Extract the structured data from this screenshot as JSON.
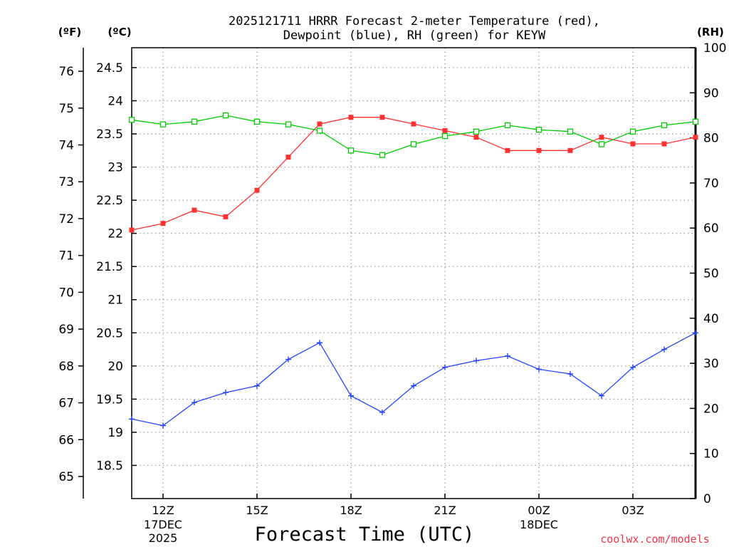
{
  "title_line1": "2025121711 HRRR Forecast 2-meter Temperature (red),",
  "title_line2": "Dewpoint (blue), RH (green) for KEYW",
  "axis_header_f": "(ºF)",
  "axis_header_c": "(ºC)",
  "axis_header_rh": "(RH)",
  "xlabel": "Forecast Time (UTC)",
  "credit": "coolwx.com/models",
  "colors": {
    "temp": "#ff3030",
    "dew": "#2244ff",
    "rh": "#00cc00",
    "grid": "#999999"
  },
  "chart_data": {
    "type": "line",
    "x": [
      0,
      1,
      2,
      3,
      4,
      5,
      6,
      7,
      8,
      9,
      10,
      11,
      12,
      13,
      14,
      15,
      16,
      17,
      18
    ],
    "x_ticks": [
      {
        "x": 1,
        "label": "12Z",
        "sub1": "17DEC",
        "sub2": "2025"
      },
      {
        "x": 4,
        "label": "15Z"
      },
      {
        "x": 7,
        "label": "18Z"
      },
      {
        "x": 10,
        "label": "21Z"
      },
      {
        "x": 13,
        "label": "00Z",
        "sub1": "18DEC"
      },
      {
        "x": 16,
        "label": "03Z"
      }
    ],
    "y_celsius_range": [
      18.0,
      24.8
    ],
    "y_celsius_ticks": [
      "18.5",
      "19",
      "19.5",
      "20",
      "20.5",
      "21",
      "21.5",
      "22",
      "22.5",
      "23",
      "23.5",
      "24",
      "24.5"
    ],
    "y_fahrenheit_ticks": [
      "65",
      "66",
      "67",
      "68",
      "69",
      "70",
      "71",
      "72",
      "73",
      "74",
      "75",
      "76"
    ],
    "y_rh_range": [
      0,
      100
    ],
    "y_rh_ticks": [
      "0",
      "10",
      "20",
      "30",
      "40",
      "50",
      "60",
      "70",
      "80",
      "90",
      "100"
    ],
    "series": [
      {
        "name": "Temperature",
        "unit": "C",
        "values": [
          22.05,
          22.15,
          22.35,
          22.25,
          22.65,
          23.15,
          23.65,
          23.75,
          23.75,
          23.65,
          23.55,
          23.45,
          23.25,
          23.25,
          23.25,
          23.45,
          23.35,
          23.35,
          23.45
        ]
      },
      {
        "name": "Dewpoint",
        "unit": "C",
        "values": [
          19.2,
          19.1,
          19.45,
          19.6,
          19.7,
          20.1,
          20.35,
          19.55,
          19.3,
          19.7,
          19.98,
          20.08,
          20.15,
          19.95,
          19.88,
          19.55,
          19.98,
          20.25,
          20.5
        ]
      },
      {
        "name": "RH",
        "unit": "%",
        "values": [
          84,
          83,
          83.6,
          85,
          83.6,
          83,
          81.6,
          77.2,
          76.2,
          78.6,
          80.4,
          81.4,
          82.8,
          81.8,
          81.4,
          78.6,
          81.4,
          82.8,
          83.6
        ]
      }
    ]
  }
}
